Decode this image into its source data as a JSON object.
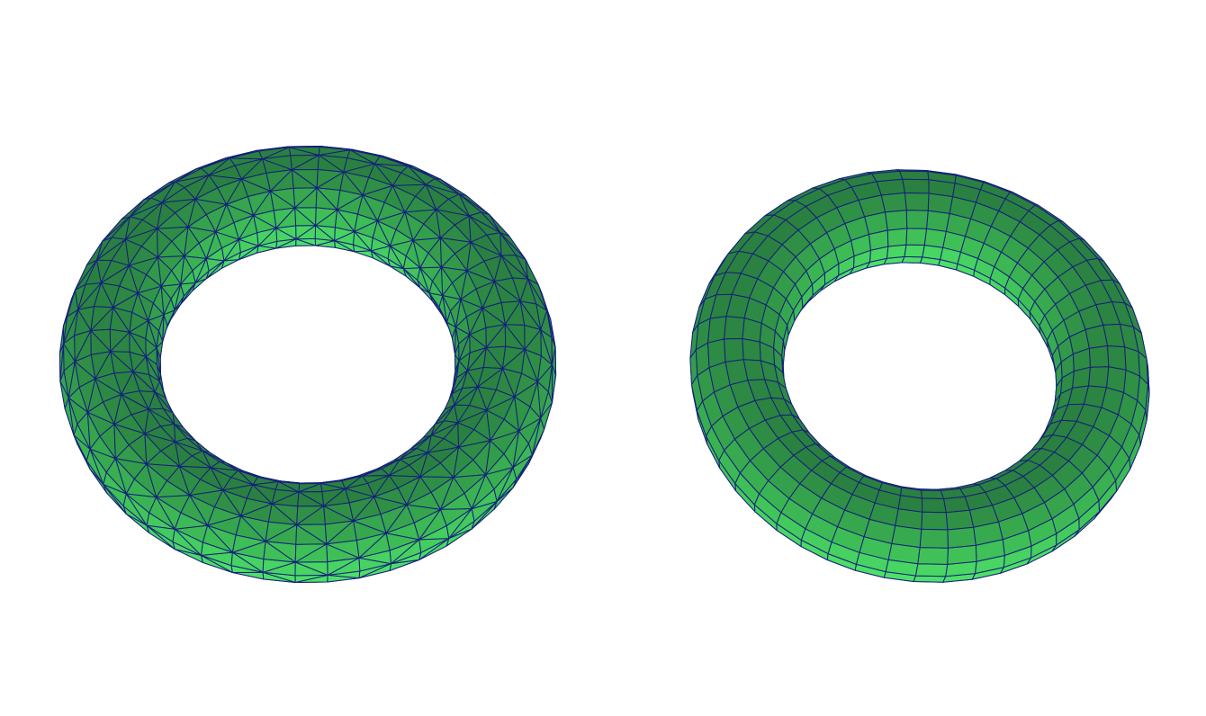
{
  "figure": {
    "meshes": [
      {
        "id": "triangulated-torus",
        "mesh_type": "triangle",
        "major_segments": 48,
        "minor_segments": 16,
        "colors": {
          "top": "#4de068",
          "mid": "#3dbb55",
          "dark": "#2a8040",
          "edge": "#15207a"
        }
      },
      {
        "id": "quad-torus",
        "mesh_type": "quad",
        "major_segments": 48,
        "minor_segments": 16,
        "colors": {
          "top": "#4de068",
          "mid": "#3dbb55",
          "dark": "#2a8040",
          "edge": "#15207a"
        }
      }
    ]
  }
}
